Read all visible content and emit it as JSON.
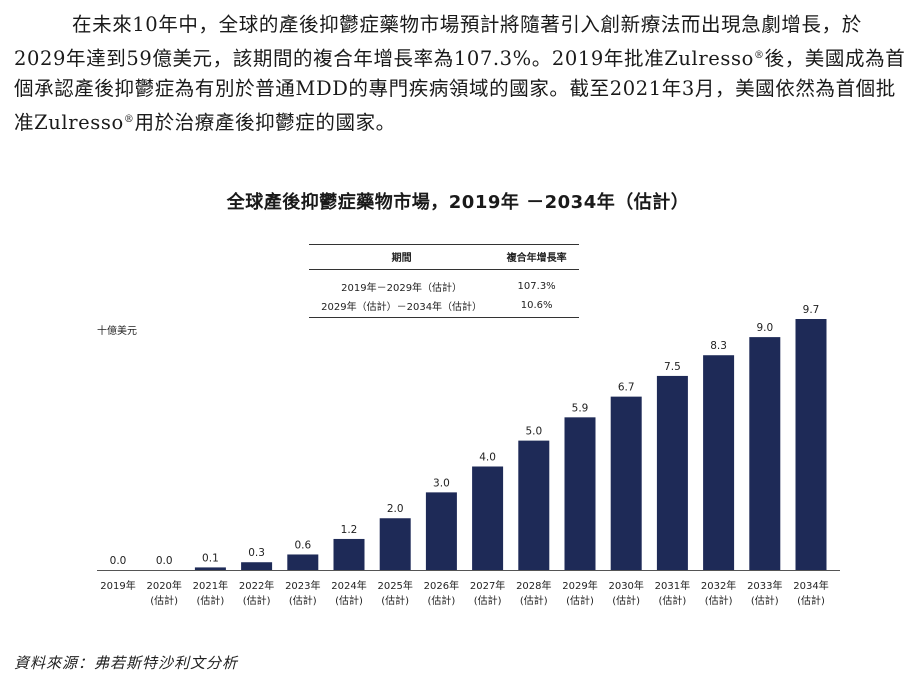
{
  "intro": {
    "text_a": "在未來10年中，全球的產後抑鬱症藥物市場預計將隨著引入創新療法而出現急劇增長，於2029年達到59億美元，該期間的複合年增長率為107.3%。2019年批准Zulresso",
    "reg_mark_1": "®",
    "text_b": "後，美國成為首個承認產後抑鬱症為有別於普通MDD的專門疾病領域的國家。截至2021年3月，美國依然為首個批准Zulresso",
    "reg_mark_2": "®",
    "text_c": "用於治療產後抑鬱症的國家。"
  },
  "cagr_table": {
    "header_period": "期間",
    "header_cagr": "複合年增長率",
    "rows": [
      {
        "period": "2019年－2029年（估計）",
        "cagr": "107.3%"
      },
      {
        "period": "2029年（估計）－2034年（估計）",
        "cagr": "10.6%"
      }
    ]
  },
  "source": "資料來源：弗若斯特沙利文分析",
  "chart_data": {
    "type": "bar",
    "title": "全球產後抑鬱症藥物市場，2019年 －2034年（估計）",
    "ylabel": "十億美元",
    "bar_color": "#1e2a57",
    "categories": [
      [
        "2019年",
        ""
      ],
      [
        "2020年",
        "(估計)"
      ],
      [
        "2021年",
        "(估計)"
      ],
      [
        "2022年",
        "(估計)"
      ],
      [
        "2023年",
        "(估計)"
      ],
      [
        "2024年",
        "(估計)"
      ],
      [
        "2025年",
        "(估計)"
      ],
      [
        "2026年",
        "(估計)"
      ],
      [
        "2027年",
        "(估計)"
      ],
      [
        "2028年",
        "(估計)"
      ],
      [
        "2029年",
        "(估計)"
      ],
      [
        "2030年",
        "(估計)"
      ],
      [
        "2031年",
        "(估計)"
      ],
      [
        "2032年",
        "(估計)"
      ],
      [
        "2033年",
        "(估計)"
      ],
      [
        "2034年",
        "(估計)"
      ]
    ],
    "values": [
      0.0,
      0.0,
      0.1,
      0.3,
      0.6,
      1.2,
      2.0,
      3.0,
      4.0,
      5.0,
      5.9,
      6.7,
      7.5,
      8.3,
      9.0,
      9.7
    ],
    "value_labels": [
      "0.0",
      "0.0",
      "0.1",
      "0.3",
      "0.6",
      "1.2",
      "2.0",
      "3.0",
      "4.0",
      "5.0",
      "5.9",
      "6.7",
      "7.5",
      "8.3",
      "9.0",
      "9.7"
    ],
    "ylim": [
      0,
      9.7
    ],
    "grid": false,
    "legend": "none"
  }
}
